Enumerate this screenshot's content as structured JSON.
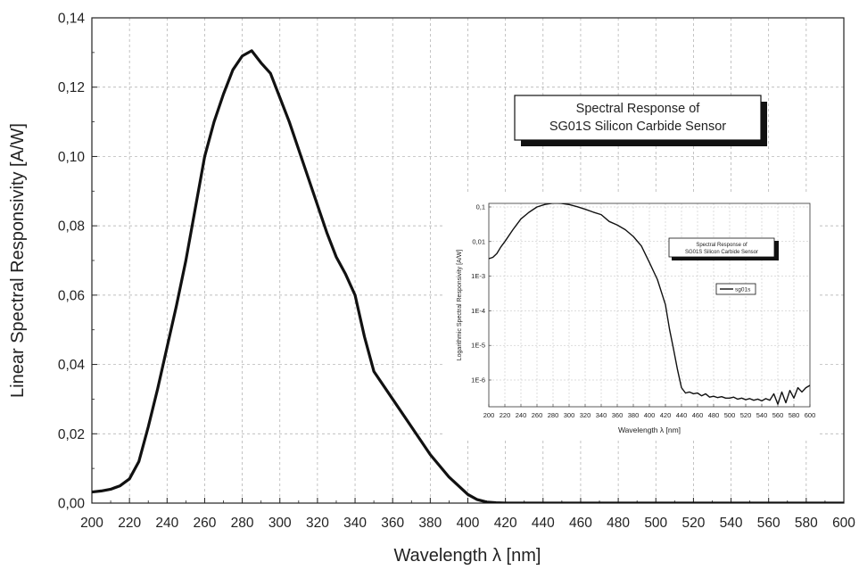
{
  "chart_data": [
    {
      "type": "line",
      "title": "Spectral Response of SG01S Silicon Carbide Sensor",
      "title_lines": [
        "Spectral Response of",
        "SG01S Silicon Carbide Sensor"
      ],
      "xlabel": "Wavelength λ [nm]",
      "ylabel": "Linear Spectral Responsivity [A/W]",
      "xlim": [
        200,
        600
      ],
      "ylim": [
        0,
        0.14
      ],
      "x_ticks": [
        "200",
        "220",
        "240",
        "260",
        "280",
        "300",
        "320",
        "340",
        "360",
        "380",
        "400",
        "420",
        "440",
        "460",
        "480",
        "500",
        "520",
        "540",
        "560",
        "580",
        "600"
      ],
      "y_ticks": [
        "0,00",
        "0,02",
        "0,04",
        "0,06",
        "0,08",
        "0,10",
        "0,12",
        "0,14"
      ],
      "grid": true,
      "series": [
        {
          "x": [
            200,
            205,
            210,
            215,
            220,
            225,
            230,
            235,
            240,
            245,
            250,
            255,
            260,
            265,
            270,
            275,
            280,
            285,
            290,
            295,
            300,
            305,
            310,
            315,
            320,
            325,
            330,
            335,
            340,
            345,
            350,
            360,
            370,
            380,
            390,
            400,
            405,
            410,
            415,
            420,
            430,
            440,
            450,
            460,
            480,
            500,
            520,
            540,
            560,
            580,
            600
          ],
          "y": [
            0.0032,
            0.0035,
            0.004,
            0.005,
            0.007,
            0.012,
            0.022,
            0.033,
            0.045,
            0.057,
            0.07,
            0.085,
            0.1,
            0.11,
            0.118,
            0.125,
            0.129,
            0.1305,
            0.127,
            0.124,
            0.117,
            0.11,
            0.102,
            0.094,
            0.086,
            0.078,
            0.071,
            0.066,
            0.06,
            0.048,
            0.038,
            0.03,
            0.022,
            0.014,
            0.0075,
            0.0025,
            0.001,
            0.0003,
            0.0001,
            0.0,
            0.0,
            0.0,
            0.0,
            0.0,
            0.0,
            0.0,
            0.0,
            0.0,
            0.0,
            0.0,
            0.0
          ]
        }
      ]
    },
    {
      "type": "line",
      "title": "Spectral Response of SG01S Silicon Carbide Sensor",
      "title_lines": [
        "Spectral Response of",
        "SG01S Silicon Carbide Sensor"
      ],
      "xlabel": "Wavelength λ [nm]",
      "ylabel": "Logarithmic Spectral Responsivity [A/W]",
      "xlim": [
        200,
        600
      ],
      "y_scale": "log",
      "ylim": [
        3e-07,
        0.1
      ],
      "x_ticks": [
        "200",
        "220",
        "240",
        "260",
        "280",
        "300",
        "320",
        "340",
        "360",
        "380",
        "400",
        "420",
        "440",
        "460",
        "480",
        "500",
        "520",
        "540",
        "560",
        "580",
        "600"
      ],
      "y_ticks": [
        "0,1",
        "0,01",
        "1E-3",
        "1E-4",
        "1E-5",
        "1E-6"
      ],
      "legend": "sg01s",
      "legend_position": "right",
      "grid": true,
      "series": [
        {
          "name": "sg01s",
          "x": [
            200,
            205,
            210,
            215,
            220,
            230,
            240,
            250,
            260,
            270,
            280,
            290,
            300,
            310,
            320,
            330,
            340,
            350,
            360,
            370,
            380,
            390,
            400,
            410,
            420,
            425,
            430,
            435,
            440,
            445,
            450,
            455,
            460,
            465,
            470,
            475,
            480,
            485,
            490,
            495,
            500,
            505,
            510,
            515,
            520,
            525,
            530,
            535,
            540,
            545,
            550,
            555,
            560,
            565,
            570,
            575,
            580,
            585,
            590,
            595,
            600
          ],
          "y": [
            0.0032,
            0.0035,
            0.0045,
            0.007,
            0.01,
            0.022,
            0.045,
            0.07,
            0.1,
            0.118,
            0.129,
            0.127,
            0.117,
            0.102,
            0.086,
            0.071,
            0.06,
            0.038,
            0.03,
            0.022,
            0.014,
            0.0075,
            0.0025,
            0.0008,
            0.00015,
            3e-05,
            8e-06,
            2e-06,
            6e-07,
            4.2e-07,
            4.5e-07,
            4e-07,
            4.2e-07,
            3.5e-07,
            4e-07,
            3.2e-07,
            3.4e-07,
            3.1e-07,
            3.3e-07,
            3e-07,
            3e-07,
            3.2e-07,
            2.8e-07,
            3e-07,
            2.7e-07,
            2.9e-07,
            2.6e-07,
            2.8e-07,
            2.5e-07,
            2.9e-07,
            2.6e-07,
            4e-07,
            2e-07,
            4.5e-07,
            2.2e-07,
            5e-07,
            3e-07,
            6e-07,
            4.5e-07,
            6e-07,
            7e-07
          ]
        }
      ]
    }
  ]
}
